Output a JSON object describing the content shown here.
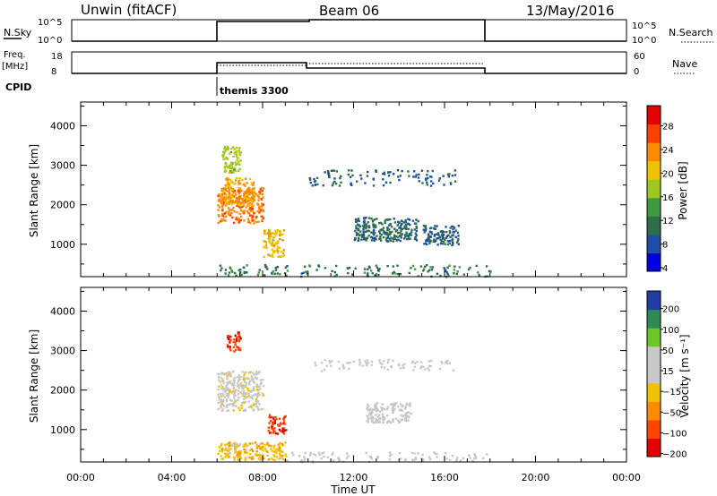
{
  "header": {
    "site": "Unwin (fitACF)",
    "beam": "Beam 06",
    "date": "13/May/2016"
  },
  "panels": {
    "nsky": {
      "label": "N.Sky",
      "left_ticks": [
        "10^5",
        "10^0"
      ],
      "right_ticks": [
        "10^5",
        "10^0"
      ],
      "right_label": "N.Search",
      "right_legend_line": "dotted"
    },
    "freq": {
      "label": "Freq.",
      "unit": "[MHz]",
      "left_ticks": [
        "18",
        "8"
      ],
      "right_ticks": [
        "60",
        "0"
      ],
      "right_label": "Nave",
      "right_legend_line": "dotted"
    },
    "cpid": {
      "label": "CPID",
      "program": "themis 3300"
    }
  },
  "chart_data": [
    {
      "type": "heatmap",
      "name": "power",
      "ylabel": "Slant Range [km]",
      "yticks": [
        1000,
        2000,
        3000,
        4000
      ],
      "ylim": [
        180,
        4600
      ],
      "xlim": [
        0,
        24
      ],
      "xticks": [
        "00:00",
        "04:00",
        "08:00",
        "12:00",
        "16:00",
        "20:00",
        "00:00"
      ],
      "colorbar": {
        "label": "Power [dB]",
        "ticks": [
          "28",
          "24",
          "20",
          "16",
          "12",
          "8",
          "4"
        ],
        "range": [
          0,
          32
        ],
        "colors": [
          "#0000e6",
          "#1f4ea8",
          "#2e6e4a",
          "#3f9b3f",
          "#9ec81e",
          "#f2c200",
          "#ff8a00",
          "#ff4000",
          "#e60000"
        ]
      },
      "regions": [
        {
          "t": [
            6.0,
            8.0
          ],
          "r": [
            1550,
            2450
          ],
          "value": 24
        },
        {
          "t": [
            6.3,
            7.6
          ],
          "r": [
            2000,
            2700
          ],
          "value": 22
        },
        {
          "t": [
            8.0,
            8.9
          ],
          "r": [
            700,
            1400
          ],
          "value": 20
        },
        {
          "t": [
            6.2,
            7.0
          ],
          "r": [
            2800,
            3500
          ],
          "value": 16
        },
        {
          "t": [
            10.0,
            16.5
          ],
          "r": [
            2500,
            2900
          ],
          "value": 7
        },
        {
          "t": [
            12.0,
            14.8
          ],
          "r": [
            1100,
            1700
          ],
          "value": 8
        },
        {
          "t": [
            15.0,
            16.6
          ],
          "r": [
            1000,
            1500
          ],
          "value": 7
        },
        {
          "t": [
            6.0,
            18.0
          ],
          "r": [
            200,
            500
          ],
          "value": 9
        }
      ]
    },
    {
      "type": "heatmap",
      "name": "velocity",
      "ylabel": "Slant Range [km]",
      "yticks": [
        1000,
        2000,
        3000,
        4000
      ],
      "ylim": [
        180,
        4600
      ],
      "xlim": [
        0,
        24
      ],
      "xticks": [
        "00:00",
        "04:00",
        "08:00",
        "12:00",
        "16:00",
        "20:00",
        "00:00"
      ],
      "xlabel": "Time UT",
      "colorbar": {
        "label": "Velocity [m s⁻¹]",
        "ticks": [
          "200",
          "100",
          "50",
          "15",
          "−15",
          "−50",
          "−100",
          "−200"
        ],
        "range": [
          -250,
          250
        ],
        "colors": [
          "#e60000",
          "#ff4500",
          "#ff8c00",
          "#f2c200",
          "#c8c8c8",
          "#c8c8c8",
          "#6cc626",
          "#2e8b57",
          "#1f3fa8"
        ]
      },
      "regions": [
        {
          "t": [
            6.0,
            8.0
          ],
          "r": [
            1500,
            2500
          ],
          "value": 0
        },
        {
          "t": [
            8.2,
            9.0
          ],
          "r": [
            900,
            1400
          ],
          "value": -180
        },
        {
          "t": [
            6.4,
            7.0
          ],
          "r": [
            3000,
            3500
          ],
          "value": -180
        },
        {
          "t": [
            12.5,
            14.5
          ],
          "r": [
            1200,
            1700
          ],
          "value": 30
        },
        {
          "t": [
            10.0,
            16.5
          ],
          "r": [
            2500,
            2800
          ],
          "value": 20
        },
        {
          "t": [
            6.0,
            9.0
          ],
          "r": [
            250,
            700
          ],
          "value": -60
        },
        {
          "t": [
            9.0,
            18.0
          ],
          "r": [
            200,
            450
          ],
          "value": 40
        }
      ]
    }
  ]
}
